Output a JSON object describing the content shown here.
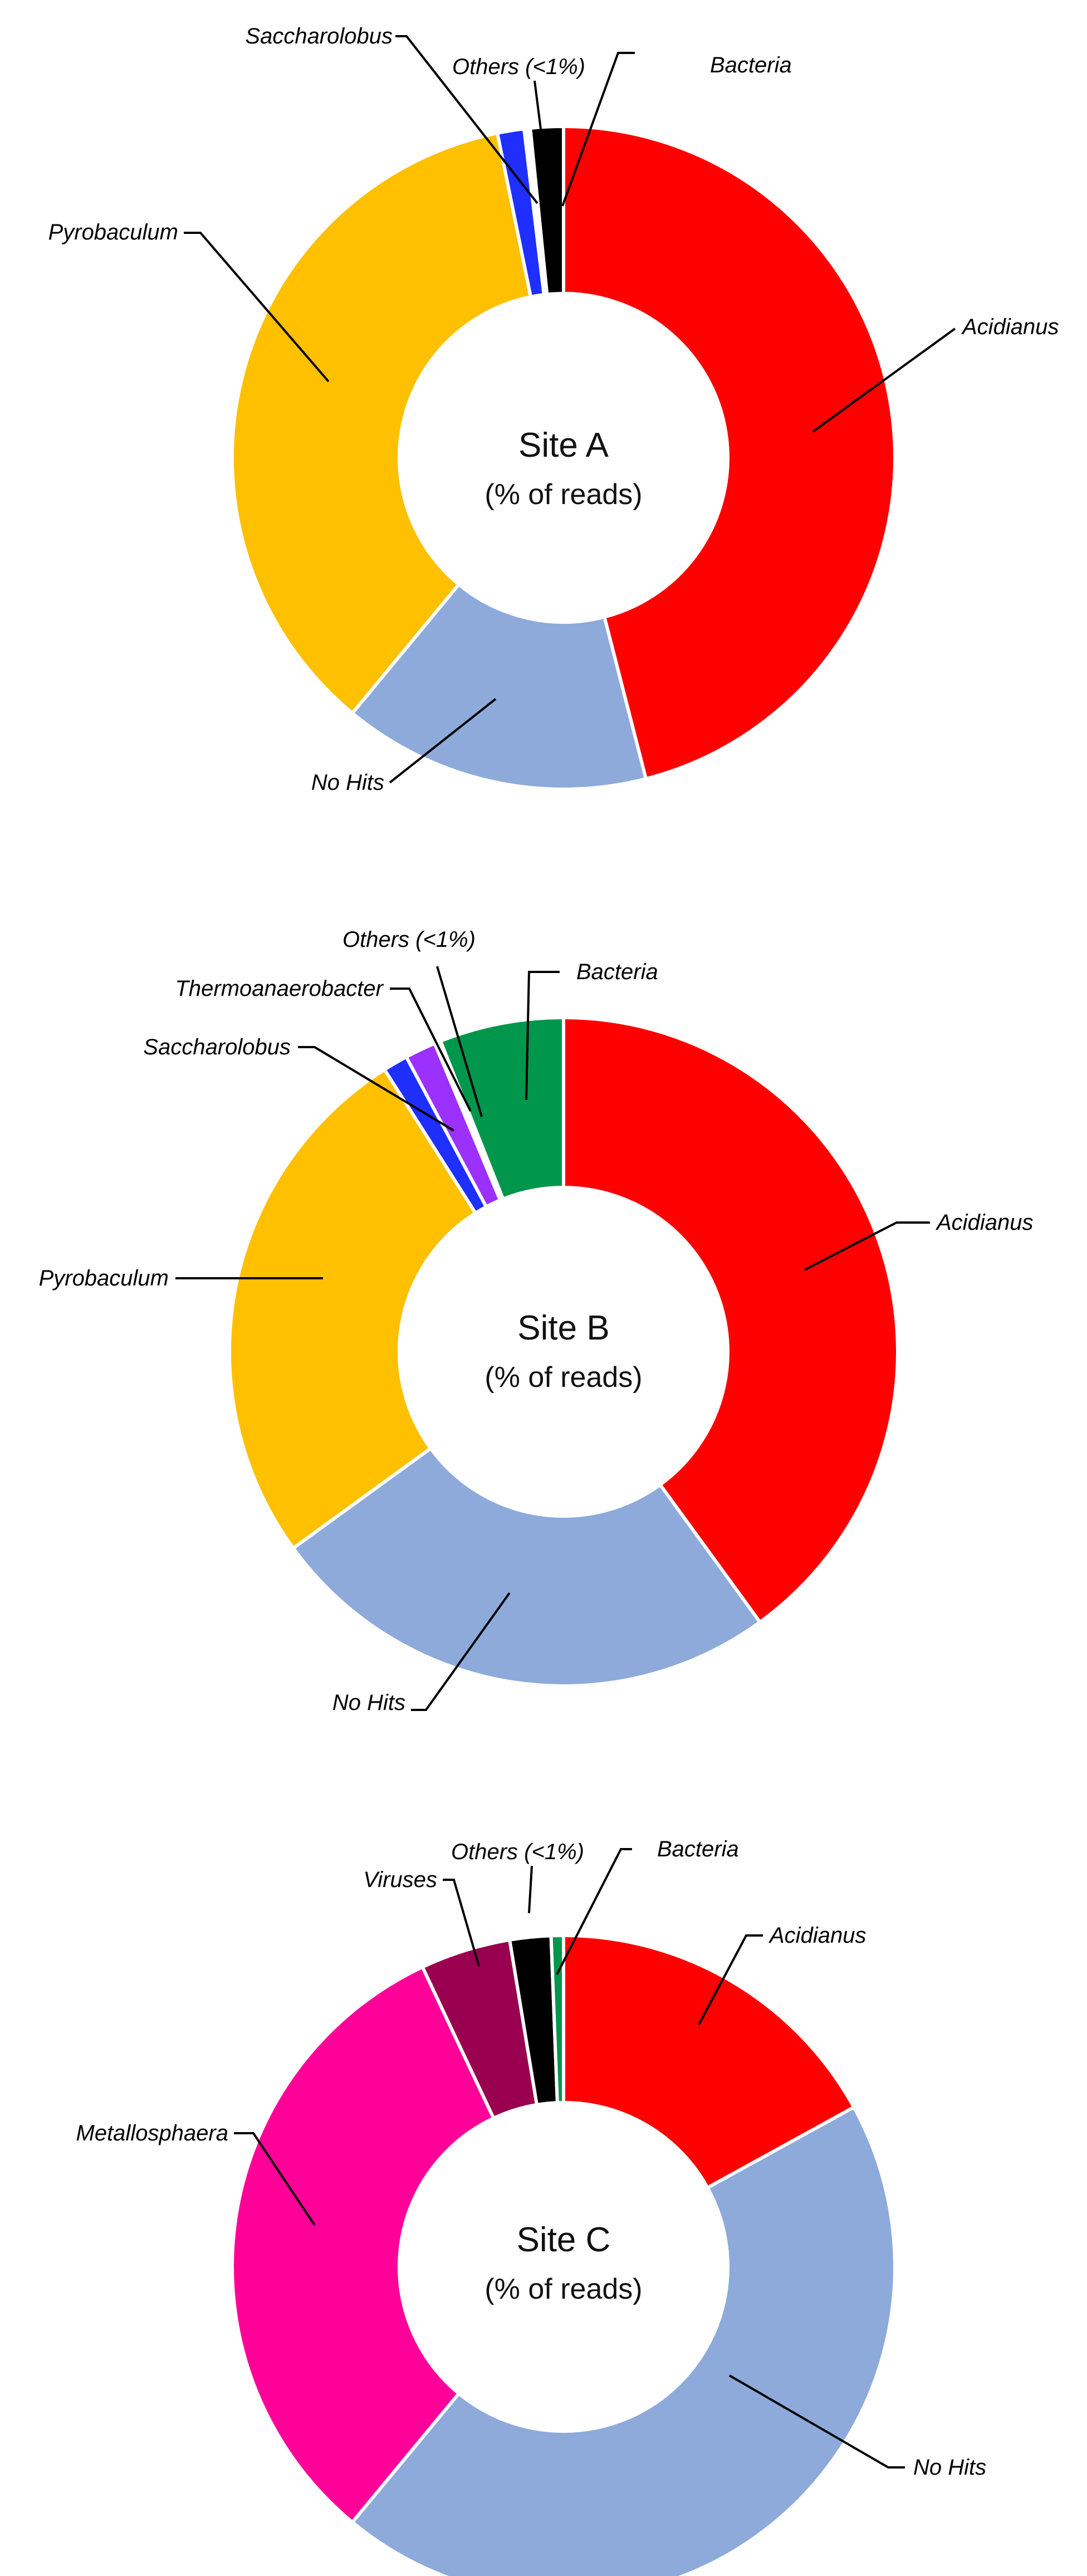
{
  "chart_data": [
    {
      "type": "pie",
      "title": "Site A",
      "subtitle": "(% of reads)",
      "series": [
        {
          "name": "Acidianus",
          "value": 46.0,
          "color": "#ff0000"
        },
        {
          "name": "No Hits",
          "value": 15.0,
          "color": "#8eaadb"
        },
        {
          "name": "Pyrobaculum",
          "value": 35.8,
          "color": "#ffc000"
        },
        {
          "name": "Saccharolobus",
          "value": 1.3,
          "color": "#1f2fff"
        },
        {
          "name": "Others (<1%)",
          "value": 0.3,
          "color": "#ffffff"
        },
        {
          "name": "Bacteria",
          "value": 1.6,
          "color": "#000000"
        }
      ]
    },
    {
      "type": "pie",
      "title": "Site B",
      "subtitle": "(% of reads)",
      "series": [
        {
          "name": "Acidianus",
          "value": 40.0,
          "color": "#ff0000"
        },
        {
          "name": "No Hits",
          "value": 25.0,
          "color": "#8eaadb"
        },
        {
          "name": "Pyrobaculum",
          "value": 26.0,
          "color": "#ffc000"
        },
        {
          "name": "Saccharolobus",
          "value": 1.2,
          "color": "#1f2fff"
        },
        {
          "name": "Thermoanaerobacter",
          "value": 1.5,
          "color": "#9b30ff"
        },
        {
          "name": "Others (<1%)",
          "value": 0.3,
          "color": "#ffffff"
        },
        {
          "name": "Bacteria",
          "value": 6.0,
          "color": "#00964b"
        }
      ]
    },
    {
      "type": "pie",
      "title": "Site C",
      "subtitle": "(% of reads)",
      "series": [
        {
          "name": "Acidianus",
          "value": 17.0,
          "color": "#ff0000"
        },
        {
          "name": "No Hits",
          "value": 44.0,
          "color": "#8eaadb"
        },
        {
          "name": "Metallosphaera",
          "value": 32.0,
          "color": "#ff0099"
        },
        {
          "name": "Viruses",
          "value": 4.4,
          "color": "#990050"
        },
        {
          "name": "Others (<1%)",
          "value": 2.0,
          "color": "#000000"
        },
        {
          "name": "Bacteria",
          "value": 0.6,
          "color": "#00964b"
        }
      ]
    }
  ]
}
